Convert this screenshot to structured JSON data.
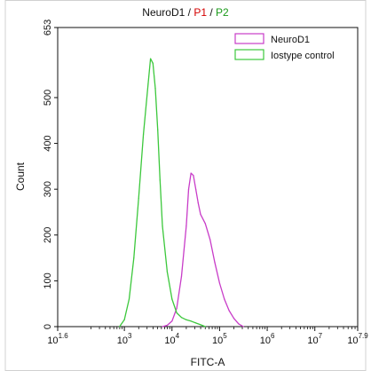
{
  "chart_data": {
    "type": "line",
    "title_parts": [
      {
        "text": "NeuroD1 / ",
        "color": "#111111"
      },
      {
        "text": "P1",
        "color": "#d40000"
      },
      {
        "text": " / ",
        "color": "#111111"
      },
      {
        "text": "P2",
        "color": "#1a9a1a"
      }
    ],
    "xlabel": "FITC-A",
    "ylabel": "Count",
    "x_scale": "log",
    "xlim_exp": [
      1.6,
      7.9
    ],
    "x_ticks": [
      {
        "base": "10",
        "exp": "1.6",
        "v": 1.6
      },
      {
        "base": "10",
        "exp": "3",
        "v": 3
      },
      {
        "base": "10",
        "exp": "4",
        "v": 4
      },
      {
        "base": "10",
        "exp": "5",
        "v": 5
      },
      {
        "base": "10",
        "exp": "6",
        "v": 6
      },
      {
        "base": "10",
        "exp": "7",
        "v": 7
      },
      {
        "base": "10",
        "exp": "7.9",
        "v": 7.9
      }
    ],
    "ylim": [
      0,
      653
    ],
    "y_ticks": [
      "0",
      "100",
      "200",
      "300",
      "400",
      "500",
      "653"
    ],
    "y_tick_values": [
      0,
      100,
      200,
      300,
      400,
      500,
      653
    ],
    "legend_position": "top-right",
    "series": [
      {
        "name": "NeuroD1",
        "color": "#c83cc8",
        "x_exp": [
          3.8,
          3.9,
          4.0,
          4.1,
          4.2,
          4.3,
          4.35,
          4.4,
          4.45,
          4.5,
          4.55,
          4.6,
          4.7,
          4.8,
          4.9,
          5.0,
          5.1,
          5.2,
          5.3,
          5.4,
          5.5
        ],
        "y": [
          0,
          3,
          12,
          40,
          110,
          220,
          300,
          335,
          330,
          300,
          270,
          245,
          225,
          190,
          140,
          95,
          60,
          35,
          18,
          6,
          0
        ]
      },
      {
        "name": "Iostype control",
        "color": "#3cc83c",
        "x_exp": [
          2.9,
          3.0,
          3.1,
          3.2,
          3.3,
          3.4,
          3.5,
          3.55,
          3.6,
          3.65,
          3.7,
          3.75,
          3.8,
          3.9,
          4.0,
          4.1,
          4.2,
          4.3,
          4.4,
          4.5,
          4.6,
          4.7
        ],
        "y": [
          0,
          15,
          60,
          150,
          280,
          420,
          530,
          585,
          575,
          520,
          430,
          320,
          220,
          120,
          60,
          30,
          20,
          15,
          12,
          8,
          4,
          0
        ]
      }
    ]
  }
}
